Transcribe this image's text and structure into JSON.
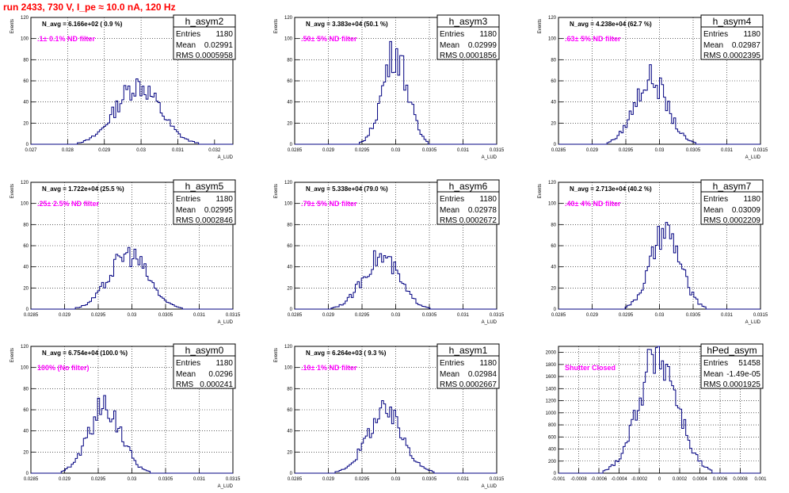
{
  "title": "run 2433,   730 V, I_pe ≈ 10.0 nA, 120 Hz",
  "chart_data": [
    {
      "name": "h_asym2",
      "type": "bar",
      "navg": "N_avg = 6.166e+02 ( 0.9 %)",
      "filter": ".1± 0.1% ND filter",
      "xlabel": "A_LUD",
      "ylabel": "Events",
      "xlim": [
        0.027,
        0.0325
      ],
      "xticks": [
        0.027,
        0.028,
        0.029,
        0.03,
        0.031,
        0.032
      ],
      "xtick_labels": [
        "0.027",
        "0.028",
        "0.029",
        "0.03",
        "0.031",
        "0.032"
      ],
      "ylim": [
        0,
        120
      ],
      "yticks": [
        0,
        20,
        40,
        60,
        80,
        100,
        120
      ],
      "ytick_labels": [
        "0",
        "20",
        "40",
        "60",
        "80",
        "100",
        "120"
      ],
      "mean": 0.02991,
      "rms": 0.0005958,
      "peak": 56,
      "stats": {
        "entries": "1180",
        "mean": "0.02991",
        "rms": "0.0005958"
      }
    },
    {
      "name": "h_asym3",
      "type": "bar",
      "navg": "N_avg = 3.383e+04 (50.1 %)",
      "filter": ".50± 5% ND filter",
      "xlabel": "A_LUD",
      "ylabel": "Events",
      "xlim": [
        0.0285,
        0.0315
      ],
      "xticks": [
        0.0285,
        0.029,
        0.0295,
        0.03,
        0.0305,
        0.031,
        0.0315
      ],
      "xtick_labels": [
        "0.0285",
        "0.029",
        "0.0295",
        "0.03",
        "0.0305",
        "0.031",
        "0.0315"
      ],
      "ylim": [
        0,
        120
      ],
      "yticks": [
        0,
        20,
        40,
        60,
        80,
        100,
        120
      ],
      "ytick_labels": [
        "0",
        "20",
        "40",
        "60",
        "80",
        "100",
        "120"
      ],
      "mean": 0.02999,
      "rms": 0.0001856,
      "peak": 87,
      "stats": {
        "entries": "1180",
        "mean": "0.02999",
        "rms": "0.0001856"
      }
    },
    {
      "name": "h_asym4",
      "type": "bar",
      "navg": "N_avg = 4.238e+04 (62.7 %)",
      "filter": ".63± 5% ND filter",
      "xlabel": "A_LUD",
      "ylabel": "Events",
      "xlim": [
        0.0285,
        0.0315
      ],
      "xticks": [
        0.0285,
        0.029,
        0.0295,
        0.03,
        0.0305,
        0.031,
        0.0315
      ],
      "xtick_labels": [
        "0.0285",
        "0.029",
        "0.0295",
        "0.03",
        "0.0305",
        "0.031",
        "0.0315"
      ],
      "ylim": [
        0,
        120
      ],
      "yticks": [
        0,
        20,
        40,
        60,
        80,
        100,
        120
      ],
      "ytick_labels": [
        "0",
        "20",
        "40",
        "60",
        "80",
        "100",
        "120"
      ],
      "mean": 0.02987,
      "rms": 0.0002395,
      "peak": 62,
      "stats": {
        "entries": "1180",
        "mean": "0.02987",
        "rms": "0.0002395"
      }
    },
    {
      "name": "h_asym5",
      "type": "bar",
      "navg": "N_avg = 1.722e+04 (25.5 %)",
      "filter": ".25± 2.5% ND filter",
      "xlabel": "A_LUD",
      "ylabel": "Events",
      "xlim": [
        0.0285,
        0.0315
      ],
      "xticks": [
        0.0285,
        0.029,
        0.0295,
        0.03,
        0.0305,
        0.031,
        0.0315
      ],
      "xtick_labels": [
        "0.0285",
        "0.029",
        "0.0295",
        "0.03",
        "0.0305",
        "0.031",
        "0.0315"
      ],
      "ylim": [
        0,
        120
      ],
      "yticks": [
        0,
        20,
        40,
        60,
        80,
        100,
        120
      ],
      "ytick_labels": [
        "0",
        "20",
        "40",
        "60",
        "80",
        "100",
        "120"
      ],
      "mean": 0.02995,
      "rms": 0.0002846,
      "peak": 52,
      "stats": {
        "entries": "1180",
        "mean": "0.02995",
        "rms": "0.0002846"
      }
    },
    {
      "name": "h_asym6",
      "type": "bar",
      "navg": "N_avg = 5.338e+04 (79.0 %)",
      "filter": ".79± 5% ND filter",
      "xlabel": "A_LUD",
      "ylabel": "Events",
      "xlim": [
        0.0285,
        0.0315
      ],
      "xticks": [
        0.0285,
        0.029,
        0.0295,
        0.03,
        0.0305,
        0.031,
        0.0315
      ],
      "xtick_labels": [
        "0.0285",
        "0.029",
        "0.0295",
        "0.03",
        "0.0305",
        "0.031",
        "0.0315"
      ],
      "ylim": [
        0,
        120
      ],
      "yticks": [
        0,
        20,
        40,
        60,
        80,
        100,
        120
      ],
      "ytick_labels": [
        "0",
        "20",
        "40",
        "60",
        "80",
        "100",
        "120"
      ],
      "mean": 0.02978,
      "rms": 0.0002672,
      "peak": 49,
      "stats": {
        "entries": "1180",
        "mean": "0.02978",
        "rms": "0.0002672"
      }
    },
    {
      "name": "h_asym7",
      "type": "bar",
      "navg": "N_avg = 2.713e+04 (40.2 %)",
      "filter": ".40± 4% ND filter",
      "xlabel": "A_LUD",
      "ylabel": "Events",
      "xlim": [
        0.0285,
        0.0315
      ],
      "xticks": [
        0.0285,
        0.029,
        0.0295,
        0.03,
        0.0305,
        0.031,
        0.0315
      ],
      "xtick_labels": [
        "0.0285",
        "0.029",
        "0.0295",
        "0.03",
        "0.0305",
        "0.031",
        "0.0315"
      ],
      "ylim": [
        0,
        120
      ],
      "yticks": [
        0,
        20,
        40,
        60,
        80,
        100,
        120
      ],
      "ytick_labels": [
        "0",
        "20",
        "40",
        "60",
        "80",
        "100",
        "120"
      ],
      "mean": 0.03009,
      "rms": 0.0002209,
      "peak": 72,
      "stats": {
        "entries": "1180",
        "mean": "0.03009",
        "rms": "0.0002209"
      }
    },
    {
      "name": "h_asym0",
      "type": "bar",
      "navg": "N_avg = 6.754e+04 (100.0 %)",
      "filter": "100% (No filter)",
      "xlabel": "A_LUD",
      "ylabel": "Events",
      "xlim": [
        0.0285,
        0.0315
      ],
      "xticks": [
        0.0285,
        0.029,
        0.0295,
        0.03,
        0.0305,
        0.031,
        0.0315
      ],
      "xtick_labels": [
        "0.0285",
        "0.029",
        "0.0295",
        "0.03",
        "0.0305",
        "0.031",
        "0.0315"
      ],
      "ylim": [
        0,
        120
      ],
      "yticks": [
        0,
        20,
        40,
        60,
        80,
        100,
        120
      ],
      "ytick_labels": [
        "0",
        "20",
        "40",
        "60",
        "80",
        "100",
        "120"
      ],
      "mean": 0.0296,
      "rms": 0.000241,
      "peak": 63,
      "stats": {
        "entries": "1180",
        "mean": "0.0296",
        "rms": "0.000241"
      }
    },
    {
      "name": "h_asym1",
      "type": "bar",
      "navg": "N_avg = 6.264e+03 ( 9.3 %)",
      "filter": ".10± 1% ND filter",
      "xlabel": "A_LUD",
      "ylabel": "Events",
      "xlim": [
        0.0285,
        0.0315
      ],
      "xticks": [
        0.0285,
        0.029,
        0.0295,
        0.03,
        0.0305,
        0.031,
        0.0315
      ],
      "xtick_labels": [
        "0.0285",
        "0.029",
        "0.0295",
        "0.03",
        "0.0305",
        "0.031",
        "0.0315"
      ],
      "ylim": [
        0,
        120
      ],
      "yticks": [
        0,
        20,
        40,
        60,
        80,
        100,
        120
      ],
      "ytick_labels": [
        "0",
        "20",
        "40",
        "60",
        "80",
        "100",
        "120"
      ],
      "mean": 0.02984,
      "rms": 0.0002667,
      "peak": 57,
      "stats": {
        "entries": "1180",
        "mean": "0.02984",
        "rms": "0.0002667"
      }
    },
    {
      "name": "hPed_asym",
      "type": "bar",
      "navg": "",
      "filter": "Shutter Closed",
      "xlabel": "",
      "ylabel": "",
      "xlim": [
        -0.001,
        0.001
      ],
      "xticks": [
        -0.001,
        -0.0008,
        -0.0006,
        -0.0004,
        -0.0002,
        0,
        0.0002,
        0.0004,
        0.0006,
        0.0008,
        0.001
      ],
      "xtick_labels": [
        "-0.001",
        "-0.0008",
        "-0.0006",
        "-0.0004",
        "-0.0002",
        "0",
        "0.0002",
        "0.0004",
        "0.0006",
        "0.0008",
        "0.001"
      ],
      "ylim": [
        0,
        2100
      ],
      "yticks": [
        0,
        200,
        400,
        600,
        800,
        1000,
        1200,
        1400,
        1600,
        1800,
        2000
      ],
      "ytick_labels": [
        "0",
        "200",
        "400",
        "600",
        "800",
        "1000",
        "1200",
        "1400",
        "1600",
        "1800",
        "2000"
      ],
      "mean": -1.49e-05,
      "rms": 0.0001925,
      "peak": 1960,
      "stats": {
        "entries": "51458",
        "mean": "-1.49e-05",
        "rms": "0.0001925"
      }
    }
  ]
}
